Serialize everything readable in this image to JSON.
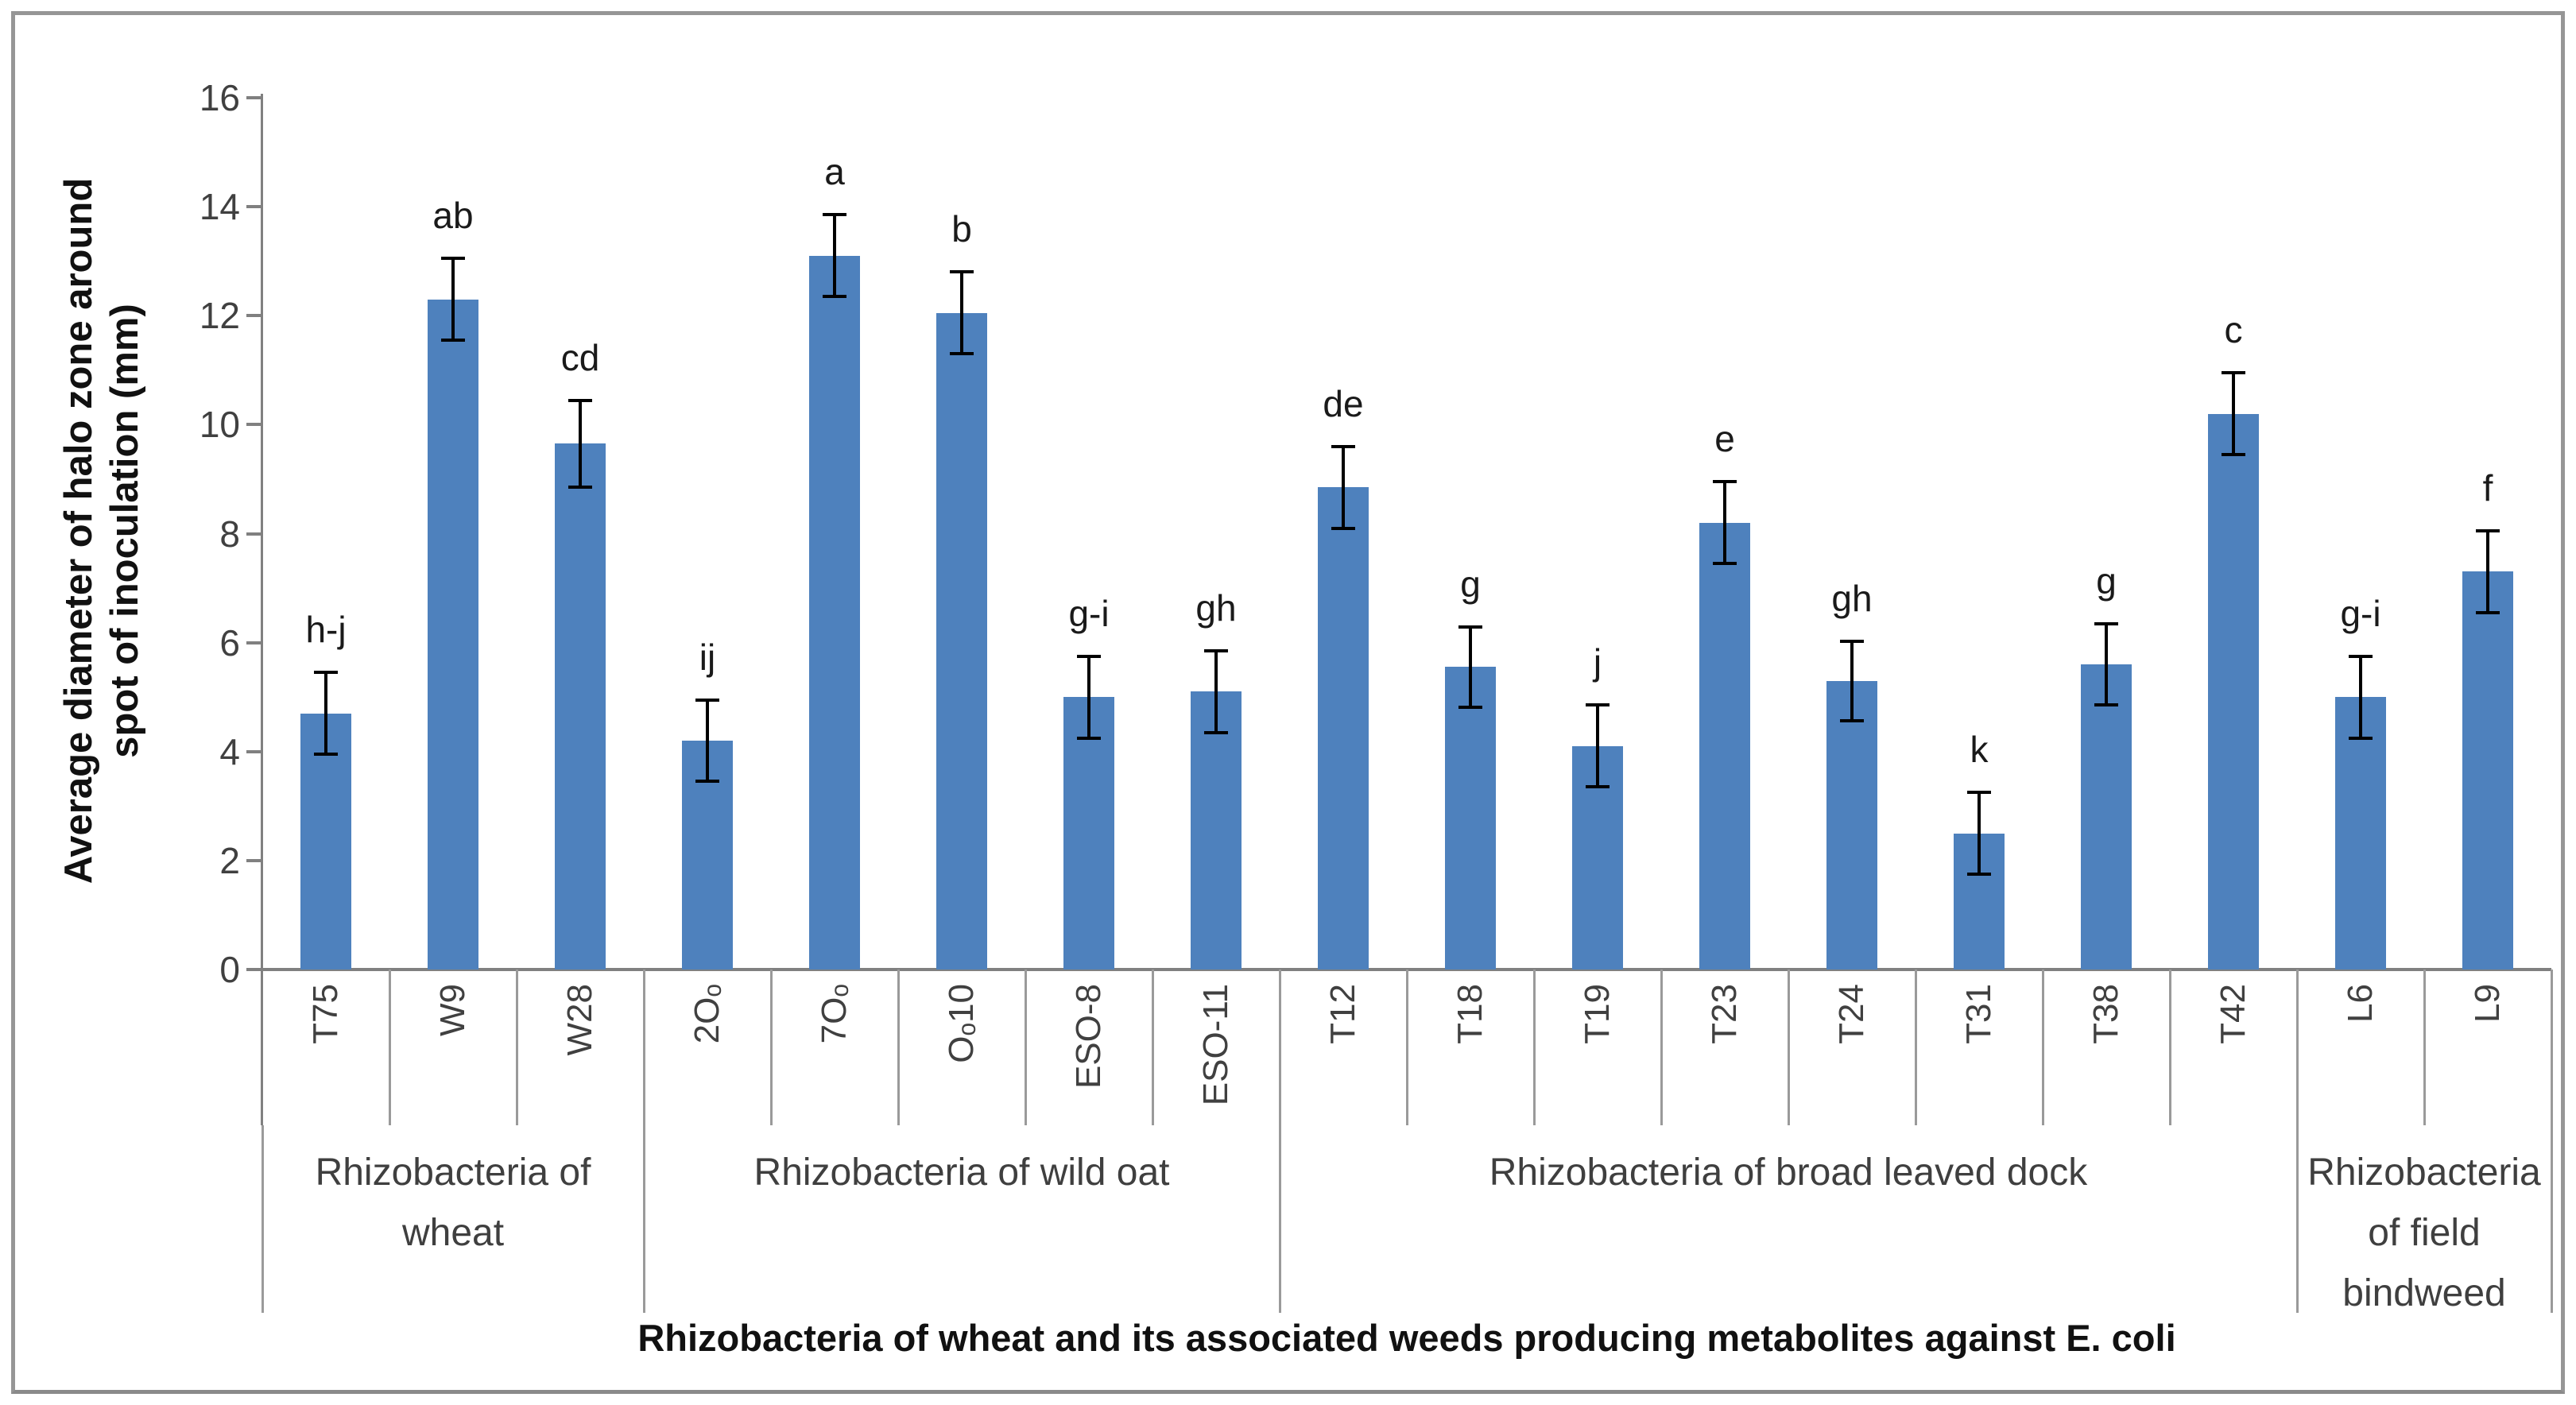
{
  "chart_data": {
    "type": "bar",
    "title": "",
    "xlabel": "Rhizobacteria of wheat and its associated weeds producing metabolites against E. coli",
    "ylabel": "Average diameter of halo zone around spot of inoculation (mm)",
    "ylabel_line1": "Average diameter of halo zone around",
    "ylabel_line2": "spot of inoculation (mm)",
    "ylim": [
      0,
      16
    ],
    "yticks": [
      0,
      2,
      4,
      6,
      8,
      10,
      12,
      14,
      16
    ],
    "grid": false,
    "legend": "none",
    "bar_color": "#4E81BD",
    "error_color": "#000000",
    "axis_color": "#808080",
    "frame_color": "#969696",
    "categories": [
      "T75",
      "W9",
      "W28",
      "2Oₒ",
      "7Oₒ",
      "Oₒ10",
      "ESO-8",
      "ESO-11",
      "T12",
      "T18",
      "T19",
      "T23",
      "T24",
      "T31",
      "T38",
      "T42",
      "L6",
      "L9"
    ],
    "values": [
      4.7,
      12.3,
      9.65,
      4.2,
      13.1,
      12.05,
      5.0,
      5.1,
      8.85,
      5.55,
      4.1,
      8.2,
      5.3,
      2.5,
      5.6,
      10.2,
      5.0,
      7.3
    ],
    "errors": [
      0.75,
      0.75,
      0.8,
      0.75,
      0.75,
      0.75,
      0.75,
      0.75,
      0.75,
      0.73,
      0.75,
      0.75,
      0.73,
      0.75,
      0.75,
      0.75,
      0.75,
      0.75
    ],
    "sig_letters": [
      "h-j",
      "ab",
      "cd",
      "ij",
      "a",
      "b",
      "g-i",
      "gh",
      "de",
      "g",
      "j",
      "e",
      "gh",
      "k",
      "g",
      "c",
      "g-i",
      "f"
    ],
    "groups": [
      {
        "label": "Rhizobacteria of wheat",
        "span": 3
      },
      {
        "label": "Rhizobacteria of wild oat",
        "span": 5
      },
      {
        "label": "Rhizobacteria of broad leaved dock",
        "span": 8
      },
      {
        "label": "Rhizobacteria of field bindweed",
        "span": 2
      }
    ]
  }
}
